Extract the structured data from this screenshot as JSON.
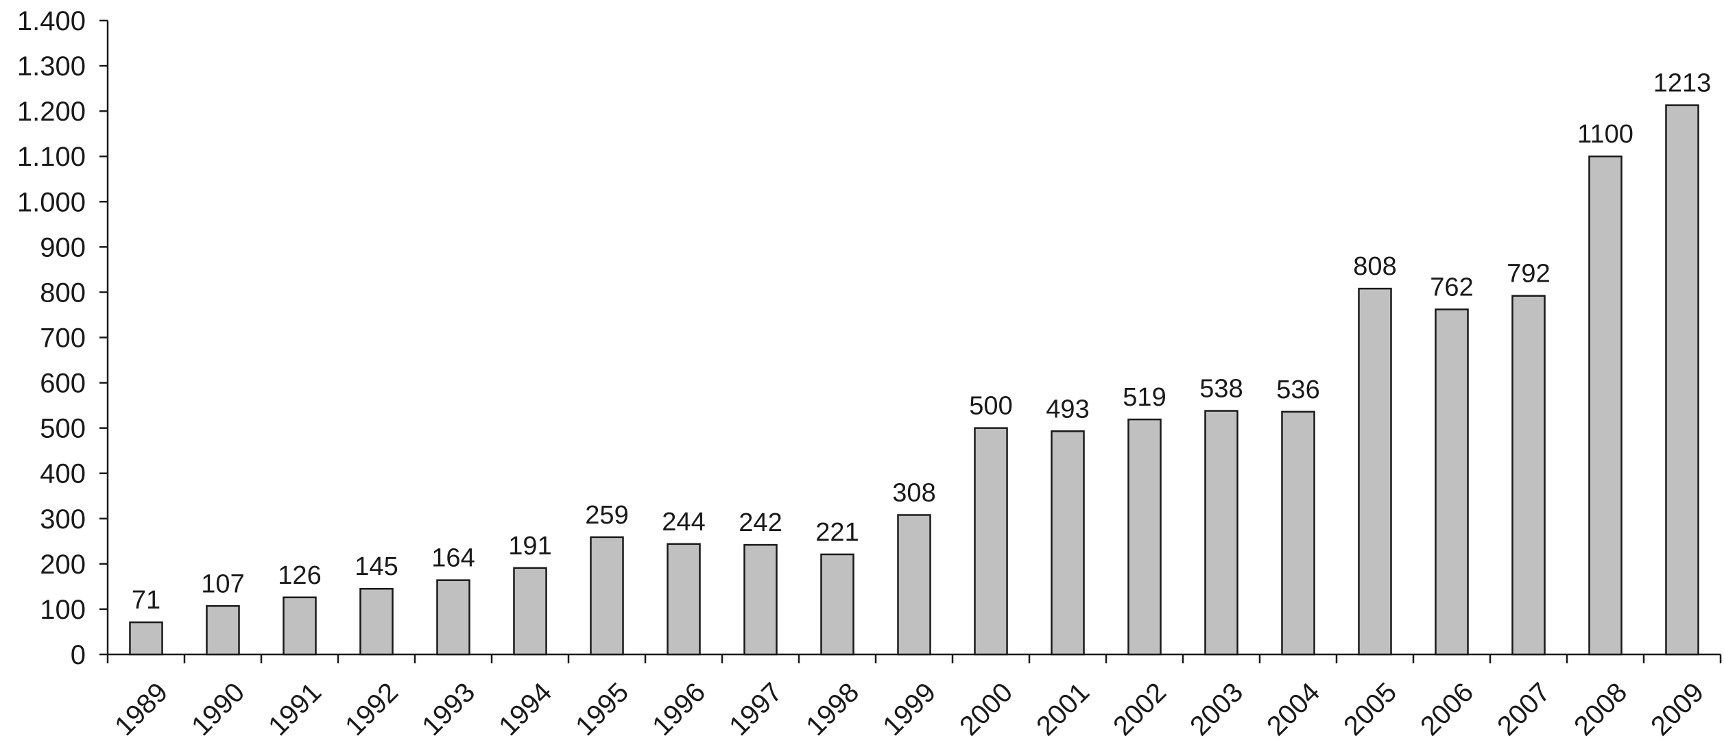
{
  "chart_data": {
    "type": "bar",
    "categories": [
      "1989",
      "1990",
      "1991",
      "1992",
      "1993",
      "1994",
      "1995",
      "1996",
      "1997",
      "1998",
      "1999",
      "2000",
      "2001",
      "2002",
      "2003",
      "2004",
      "2005",
      "2006",
      "2007",
      "2008",
      "2009"
    ],
    "values": [
      71,
      107,
      126,
      145,
      164,
      191,
      259,
      244,
      242,
      221,
      308,
      500,
      493,
      519,
      538,
      536,
      808,
      762,
      792,
      1100,
      1213
    ],
    "data_labels": [
      "71",
      "107",
      "126",
      "145",
      "164",
      "191",
      "259",
      "244",
      "242",
      "221",
      "308",
      "500",
      "493",
      "519",
      "538",
      "536",
      "808",
      "762",
      "792",
      "1100",
      "1213"
    ],
    "title": "",
    "xlabel": "",
    "ylabel": "",
    "ylim": [
      0,
      1400
    ],
    "y_ticks": [
      0,
      100,
      200,
      300,
      400,
      500,
      600,
      700,
      800,
      900,
      1000,
      1100,
      1200,
      1300,
      1400
    ],
    "y_tick_labels": [
      "0",
      "100",
      "200",
      "300",
      "400",
      "500",
      "600",
      "700",
      "800",
      "900",
      "1.000",
      "1.100",
      "1.200",
      "1.300",
      "1.400"
    ],
    "grid": false,
    "legend": "none",
    "bar_color": "#c0c0c0",
    "edge_color": "#1a1a1a"
  }
}
